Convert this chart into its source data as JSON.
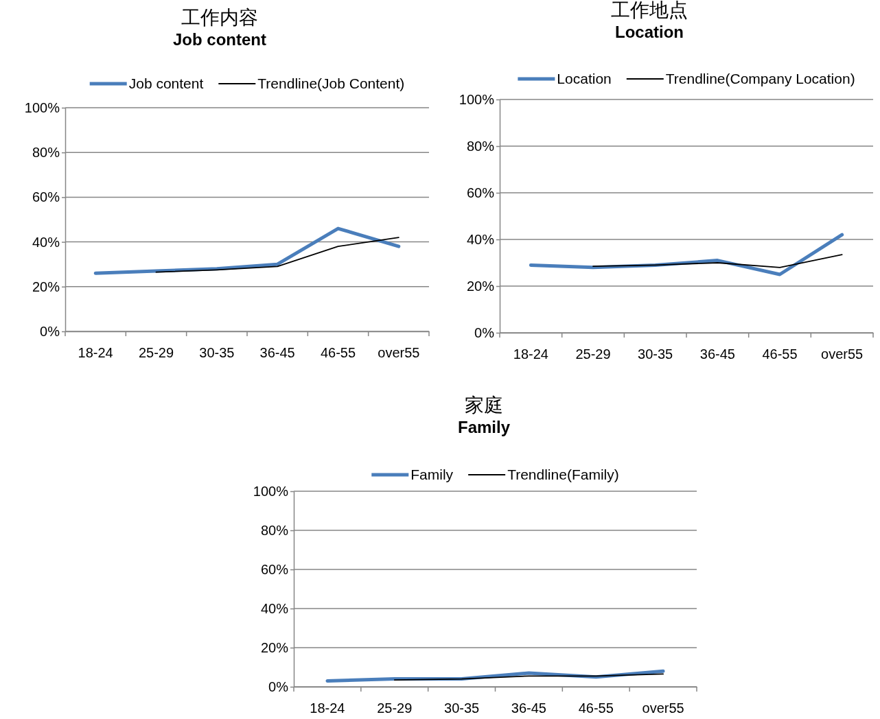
{
  "chart_data": [
    {
      "type": "line",
      "title": "工作内容",
      "subtitle": "Job content",
      "categories": [
        "18-24",
        "25-29",
        "30-35",
        "36-45",
        "46-55",
        "over55"
      ],
      "ylim": [
        0,
        1
      ],
      "yticks": [
        {
          "value": 0,
          "label": "0%"
        },
        {
          "value": 0.2,
          "label": "20%"
        },
        {
          "value": 0.4,
          "label": "40%"
        },
        {
          "value": 0.6,
          "label": "60%"
        },
        {
          "value": 0.8,
          "label": "80%"
        },
        {
          "value": 1,
          "label": "100%"
        }
      ],
      "grid": "y",
      "legend": "top",
      "marker": "none",
      "series": [
        {
          "name": "Job content",
          "color": "#4a7ebb",
          "values": [
            0.26,
            0.27,
            0.28,
            0.3,
            0.46,
            0.38
          ]
        },
        {
          "name": "Trendline(Job Content)",
          "color": "#000000",
          "values": [
            null,
            0.265,
            0.275,
            0.29,
            0.38,
            0.42
          ]
        }
      ]
    },
    {
      "type": "line",
      "title": "工作地点",
      "subtitle": "Location",
      "categories": [
        "18-24",
        "25-29",
        "30-35",
        "36-45",
        "46-55",
        "over55"
      ],
      "ylim": [
        0,
        1
      ],
      "yticks": [
        {
          "value": 0,
          "label": "0%"
        },
        {
          "value": 0.2,
          "label": "20%"
        },
        {
          "value": 0.4,
          "label": "40%"
        },
        {
          "value": 0.6,
          "label": "60%"
        },
        {
          "value": 0.8,
          "label": "80%"
        },
        {
          "value": 1,
          "label": "100%"
        }
      ],
      "grid": "y",
      "legend": "top",
      "marker": "none",
      "series": [
        {
          "name": "Location",
          "color": "#4a7ebb",
          "values": [
            0.29,
            0.28,
            0.29,
            0.31,
            0.25,
            0.42
          ]
        },
        {
          "name": "Trendline(Company Location)",
          "color": "#000000",
          "values": [
            null,
            0.285,
            0.29,
            0.3,
            0.28,
            0.335
          ]
        }
      ]
    },
    {
      "type": "line",
      "title": "家庭",
      "subtitle": "Family",
      "categories": [
        "18-24",
        "25-29",
        "30-35",
        "36-45",
        "46-55",
        "over55"
      ],
      "ylim": [
        0,
        1
      ],
      "yticks": [
        {
          "value": 0,
          "label": "0%"
        },
        {
          "value": 0.2,
          "label": "20%"
        },
        {
          "value": 0.4,
          "label": "40%"
        },
        {
          "value": 0.6,
          "label": "60%"
        },
        {
          "value": 0.8,
          "label": "80%"
        },
        {
          "value": 1,
          "label": "100%"
        }
      ],
      "grid": "y",
      "legend": "top",
      "marker": "none",
      "series": [
        {
          "name": "Family",
          "color": "#4a7ebb",
          "values": [
            0.03,
            0.04,
            0.04,
            0.07,
            0.05,
            0.08
          ]
        },
        {
          "name": "Trendline(Family)",
          "color": "#000000",
          "values": [
            null,
            0.035,
            0.04,
            0.055,
            0.055,
            0.065
          ]
        }
      ]
    }
  ]
}
